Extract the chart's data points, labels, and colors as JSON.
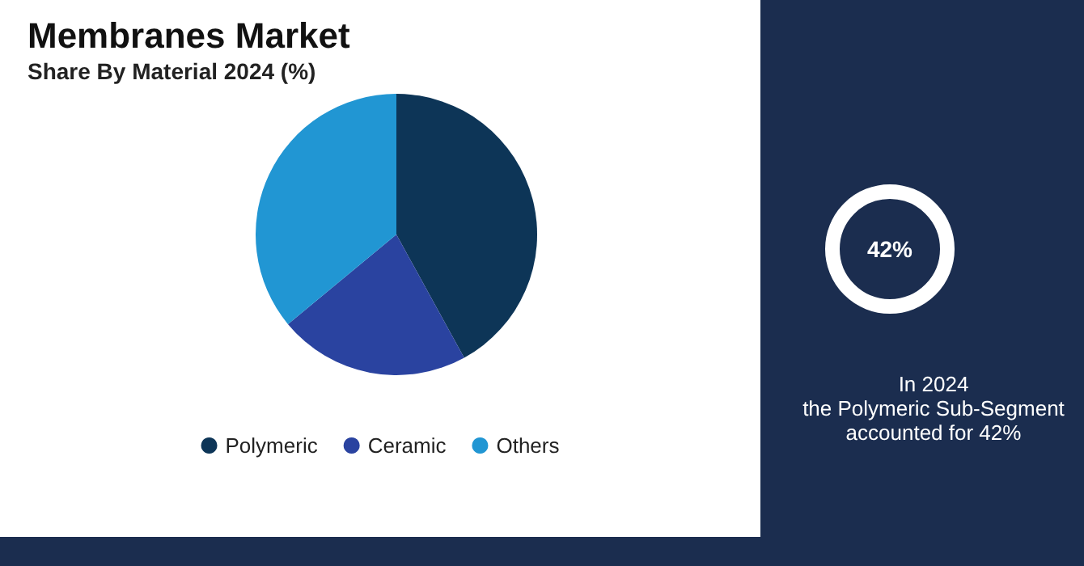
{
  "chart_data": {
    "type": "pie",
    "title": "Membranes Market",
    "subtitle": "Share By Material 2024 (%)",
    "categories": [
      "Polymeric",
      "Ceramic",
      "Others"
    ],
    "values": [
      42,
      22,
      36
    ],
    "colors": [
      "#0d3557",
      "#2a43a0",
      "#2196d3"
    ],
    "legend": "bottom",
    "annotations": [
      "42%",
      "In 2024\nthe Polymeric Sub-Segment\naccounted for 42%"
    ]
  }
}
